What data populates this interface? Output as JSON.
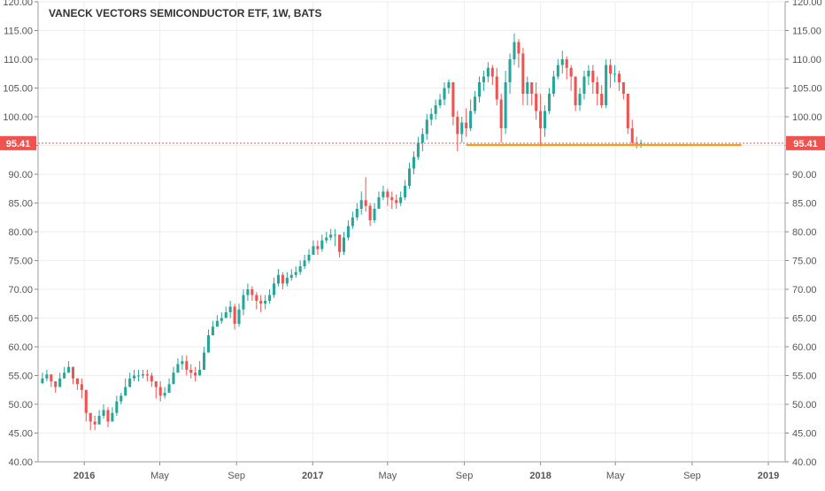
{
  "chart_data": {
    "type": "candlestick",
    "title": "VANECK VECTORS SEMICONDUCTOR ETF, 1W, BATS",
    "ylim": [
      40,
      120
    ],
    "y_ticks": [
      "40.00",
      "45.00",
      "50.00",
      "55.00",
      "60.00",
      "65.00",
      "70.00",
      "75.00",
      "80.00",
      "85.00",
      "90.00",
      "95.00",
      "100.00",
      "105.00",
      "110.00",
      "115.00",
      "120.00"
    ],
    "y_tick_values": [
      40,
      45,
      50,
      55,
      60,
      65,
      70,
      75,
      80,
      85,
      90,
      95,
      100,
      105,
      110,
      115,
      120
    ],
    "x_range": [
      "2015-10-19",
      "2019-01-28"
    ],
    "x_ticks": [
      {
        "label": "2016",
        "date": "2016-01-01",
        "bold": true
      },
      {
        "label": "May",
        "date": "2016-05-01",
        "bold": false
      },
      {
        "label": "Sep",
        "date": "2016-09-01",
        "bold": false
      },
      {
        "label": "2017",
        "date": "2017-01-01",
        "bold": true
      },
      {
        "label": "May",
        "date": "2017-05-01",
        "bold": false
      },
      {
        "label": "Sep",
        "date": "2017-09-01",
        "bold": false
      },
      {
        "label": "2018",
        "date": "2018-01-01",
        "bold": true
      },
      {
        "label": "May",
        "date": "2018-05-01",
        "bold": false
      },
      {
        "label": "Sep",
        "date": "2018-09-01",
        "bold": false
      },
      {
        "label": "2019",
        "date": "2019-01-01",
        "bold": true
      }
    ],
    "last_price": {
      "value": 95.41,
      "label": "95.41"
    },
    "support_line": {
      "value": 95.1,
      "from": "2017-09-04",
      "to": "2018-11-19"
    },
    "series": [
      {
        "name": "",
        "start_date": "2015-10-26",
        "interval_days": 7,
        "close": [
          54.5,
          55.2,
          54,
          53,
          54.5,
          55.5,
          56.5,
          54.5,
          53.5,
          52.5,
          48.5,
          47,
          46.5,
          48,
          49,
          47,
          48.5,
          50.5,
          51.5,
          53,
          54.5,
          55,
          55,
          55.2,
          55,
          54,
          53,
          51.5,
          52,
          53.5,
          55.5,
          57,
          57.5,
          56,
          55.5,
          55,
          56,
          59,
          62,
          63.5,
          64.5,
          65,
          66,
          67,
          64,
          66.5,
          69,
          70,
          69,
          68,
          67.5,
          68,
          69,
          71,
          72.5,
          71,
          72,
          72.5,
          73,
          74,
          75,
          76,
          77.5,
          77,
          78.5,
          79,
          79.5,
          79.5,
          76.5,
          79,
          81,
          82.5,
          84,
          85.5,
          84.5,
          82,
          84,
          86,
          87,
          86,
          85.5,
          85,
          86,
          88,
          91,
          93,
          95.5,
          97,
          99.5,
          100.5,
          102,
          103,
          105,
          106,
          100,
          97,
          99,
          98,
          101,
          103.5,
          106,
          107,
          108.5,
          107,
          103,
          98,
          106,
          110,
          113,
          111,
          104,
          106,
          104,
          101,
          98,
          101,
          104,
          107,
          109,
          110,
          108.5,
          107,
          102,
          104,
          107,
          108,
          106,
          104,
          102,
          109,
          107.5,
          107.5,
          106,
          104,
          98,
          95.5,
          95.3,
          95.41
        ],
        "high": [
          55.5,
          56,
          55,
          54,
          55.5,
          56.5,
          57.5,
          55.5,
          54.5,
          54.5,
          50.5,
          48,
          48,
          49,
          50,
          49.5,
          49.5,
          51.5,
          52,
          54.5,
          55.5,
          56,
          56,
          56,
          56,
          55.5,
          54,
          54,
          53,
          54.5,
          56.5,
          58,
          58.5,
          58.5,
          57,
          56.5,
          57.5,
          60,
          63,
          64.5,
          65.5,
          66,
          67,
          68,
          67.5,
          67.5,
          70,
          71,
          70.5,
          69.5,
          69,
          69,
          70,
          72,
          73.5,
          73,
          73,
          73.5,
          74,
          75,
          76,
          77,
          78.5,
          78.5,
          79.5,
          80,
          80.5,
          80.5,
          79.5,
          80,
          82,
          83.5,
          85,
          87,
          89.5,
          85,
          85,
          87,
          88,
          87.5,
          87,
          86.5,
          87,
          89,
          92,
          94,
          96.5,
          98,
          100.5,
          101.5,
          103,
          104,
          106,
          106.5,
          106,
          101,
          100,
          101.5,
          103,
          104.5,
          107,
          108,
          109.5,
          109,
          108.5,
          104,
          108,
          111,
          114.5,
          113.5,
          112,
          107,
          106,
          106,
          104,
          102,
          105,
          108,
          110,
          111.5,
          110.5,
          109,
          107,
          105,
          108,
          109,
          109,
          107,
          105.5,
          110,
          110,
          109,
          108,
          106,
          104,
          99.5,
          96.5,
          96
        ],
        "low": [
          53.5,
          54,
          53,
          52,
          53,
          54.5,
          55.5,
          53.5,
          52.5,
          51,
          47,
          45.5,
          45.5,
          46.5,
          47.5,
          46,
          47,
          48,
          50,
          52,
          53.5,
          54,
          54,
          54.5,
          54,
          53,
          51,
          50.5,
          51,
          52.5,
          54.5,
          55.5,
          56,
          55,
          54.5,
          54,
          55,
          56,
          59,
          62,
          63.5,
          64,
          65,
          65,
          63,
          63.5,
          65.5,
          68,
          68,
          66.5,
          66,
          66.5,
          67.5,
          68.5,
          70.5,
          70,
          70.5,
          71.5,
          72,
          72.5,
          73.5,
          74.5,
          76,
          76,
          76.5,
          78,
          78.5,
          77.5,
          75.5,
          76,
          78.5,
          80.5,
          82,
          83,
          83.5,
          81,
          81.5,
          84,
          85.5,
          84.5,
          84,
          84,
          84.5,
          85.5,
          87.5,
          90,
          92.5,
          94,
          96,
          98.5,
          99.5,
          101.5,
          102,
          104,
          98.5,
          94,
          95.5,
          96.5,
          97.5,
          100.5,
          102.5,
          104.5,
          106,
          105.5,
          102,
          95.5,
          97,
          104,
          109,
          108.5,
          102,
          102,
          102,
          99.5,
          95,
          96.5,
          100.5,
          103.5,
          106.5,
          107.5,
          106.5,
          104.5,
          101,
          101,
          103,
          105.5,
          104,
          102,
          101.5,
          101.5,
          105,
          106,
          104.5,
          103,
          97,
          95,
          94.5,
          94.6
        ]
      }
    ]
  }
}
